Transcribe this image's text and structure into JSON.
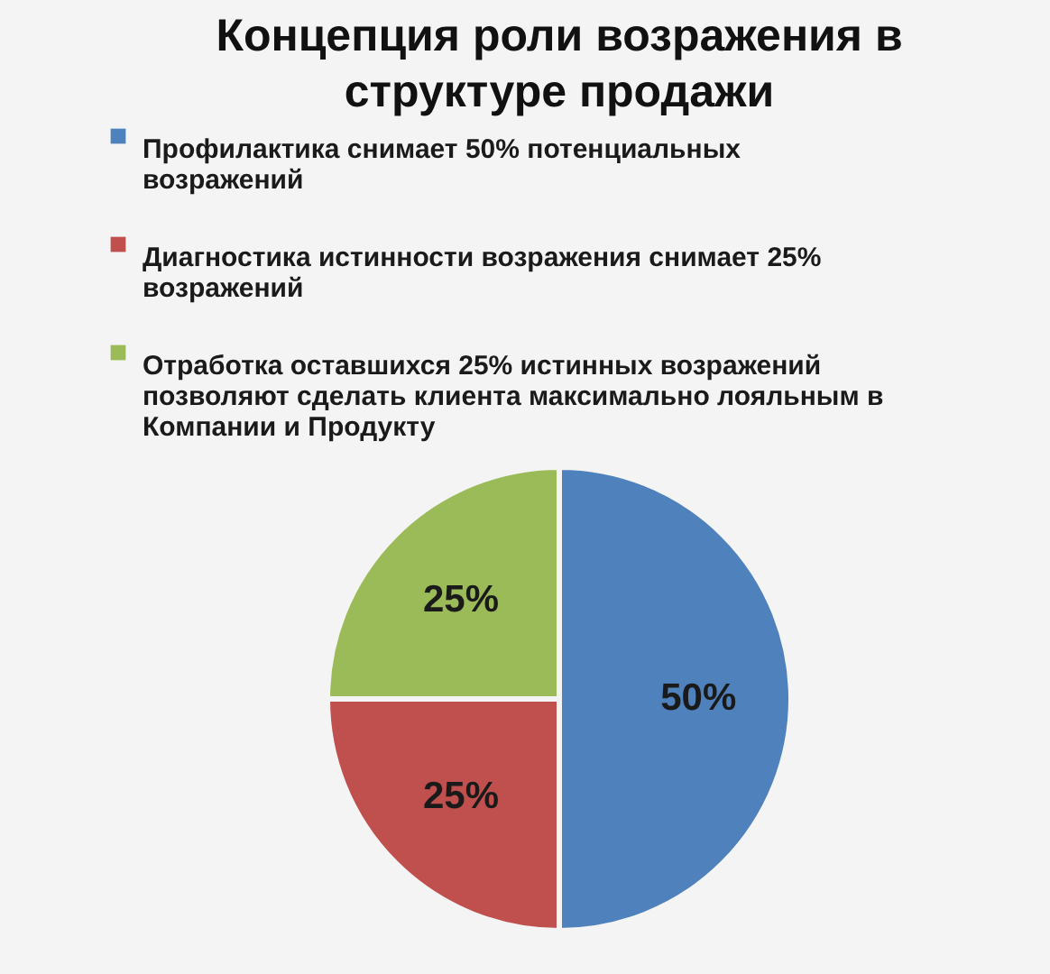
{
  "chart_data": {
    "type": "pie",
    "title": "Концепция роли возражения в структуре продажи",
    "categories": [
      "Профилактика снимает 50% потенциальных возражений",
      "Диагностика истинности возражения снимает 25% возражений",
      "Отработка оставшихся 25% истинных возражений позволяют сделать клиента максимально лояльным в Компании и Продукту"
    ],
    "values": [
      50,
      25,
      25
    ],
    "colors": [
      "#4f81bd",
      "#c0504d",
      "#9bbb59"
    ],
    "value_labels": [
      "50%",
      "25%",
      "25%"
    ],
    "legend": "top"
  }
}
